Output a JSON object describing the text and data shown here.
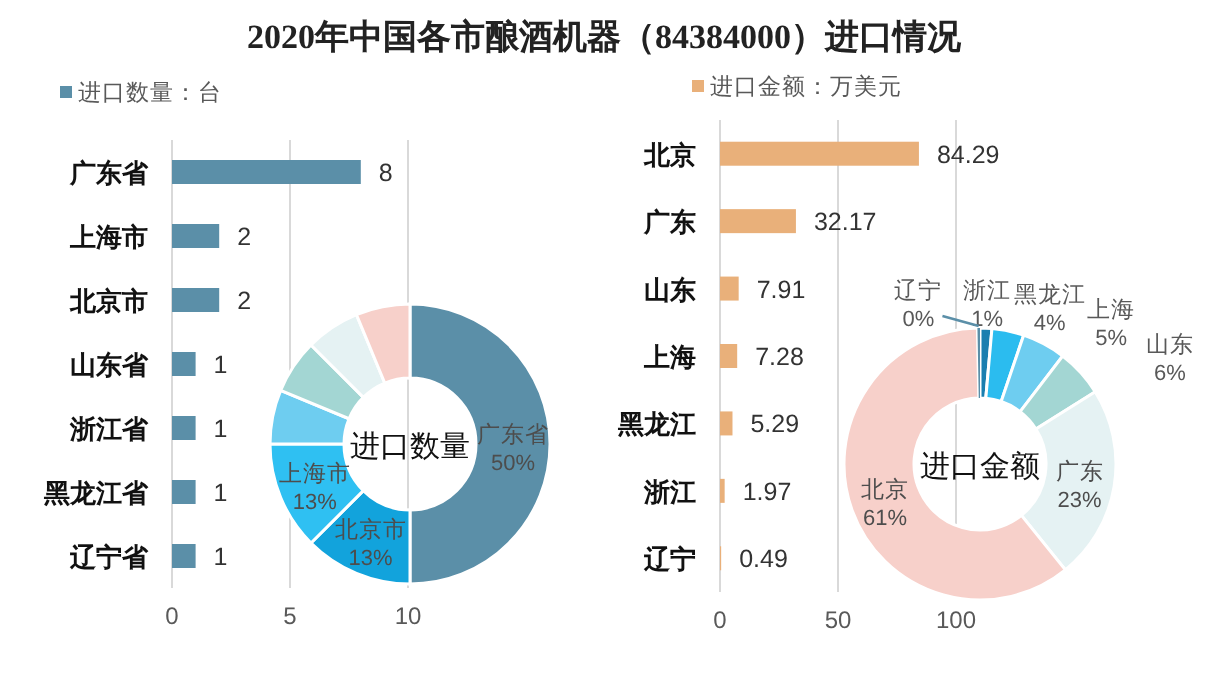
{
  "chart_data": [
    {
      "type": "bar",
      "title": "2020年中国各市酿酒机器（84384000）进口情况",
      "orientation": "horizontal",
      "categories": [
        "广东省",
        "上海市",
        "北京市",
        "山东省",
        "浙江省",
        "黑龙江省",
        "辽宁省"
      ],
      "series": [
        {
          "name": "进口数量：台",
          "color": "#5b8fa8",
          "values": [
            8,
            2,
            2,
            1,
            1,
            1,
            1
          ]
        }
      ],
      "xlim": [
        0,
        10
      ],
      "xticks": [
        0,
        5,
        10
      ],
      "grid": "x",
      "data_labels": true,
      "legend": "top left"
    },
    {
      "type": "donut",
      "categories": [
        "广东省",
        "北京市",
        "上海市",
        null,
        null,
        null,
        null
      ],
      "values": [
        50,
        12.5,
        12.5,
        6.25,
        6.25,
        6.25,
        6.25
      ],
      "value_labels": [
        "50%",
        "13%",
        "13%",
        null,
        null,
        null,
        null
      ],
      "colors": [
        "#5b8fa8",
        "#12a3dc",
        "#2fc0f2",
        "#6ecdf0",
        "#a3d6d3",
        "#e5f2f3",
        "#f7d0ca"
      ],
      "annotations": [
        "进口数量"
      ]
    },
    {
      "type": "bar",
      "orientation": "horizontal",
      "categories": [
        "北京",
        "广东",
        "山东",
        "上海",
        "黑龙江",
        "浙江",
        "辽宁"
      ],
      "series": [
        {
          "name": "进口金额：万美元",
          "color": "#e9b07a",
          "values": [
            84.29,
            32.17,
            7.91,
            7.28,
            5.29,
            1.97,
            0.49
          ]
        }
      ],
      "xlim": [
        0,
        100
      ],
      "xticks": [
        0,
        50,
        100
      ],
      "grid": "x",
      "data_labels": true,
      "legend": "top left"
    },
    {
      "type": "donut",
      "categories": [
        "浙江",
        "黑龙江",
        "上海",
        "山东",
        "广东",
        "北京",
        "辽宁"
      ],
      "values": [
        1.4,
        3.8,
        5.2,
        5.7,
        23.1,
        60.5,
        0.3
      ],
      "value_labels": [
        "1%",
        "4%",
        "5%",
        "6%",
        "23%",
        "61%",
        "0%"
      ],
      "colors": [
        "#1a7fb0",
        "#2bbcef",
        "#6ecdf0",
        "#a3d6d3",
        "#e5f2f3",
        "#f7d0ca",
        "#5b8fa8"
      ],
      "annotations": [
        "进口金额"
      ]
    }
  ]
}
